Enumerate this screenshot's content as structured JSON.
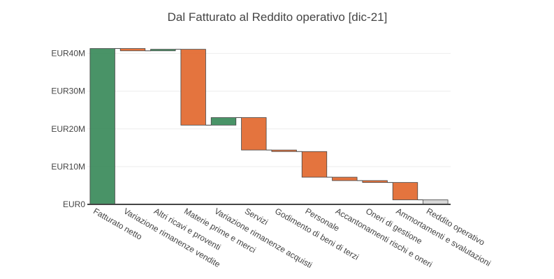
{
  "chart_data": {
    "type": "waterfall",
    "title": "Dal Fatturato al Reddito operativo [dic-21]",
    "currency_prefix": "EUR",
    "y_unit_suffix": "M",
    "ylim": [
      0,
      40
    ],
    "yticks": [
      0,
      10,
      20,
      30,
      40
    ],
    "ytick_labels": [
      "EUR0",
      "EUR10M",
      "EUR20M",
      "EUR30M",
      "EUR40M"
    ],
    "grid": true,
    "colors": {
      "increase": "#3a8a5a",
      "decrease": "#e2682e",
      "total": "#d4d4d4",
      "border": "#444444"
    },
    "categories": [
      "Fatturato netto",
      "Variazione rimanenze vendite",
      "Altri ricavi e proventi",
      "Materie prime e merci",
      "Variazione rimanenze acquisti",
      "Servizi",
      "Godimento di beni di terzi",
      "Personale",
      "Accantonamenti rischi e oneri",
      "Oneri di gestione",
      "Ammortamenti e svalutazioni",
      "Reddito operativo"
    ],
    "measures": [
      "relative",
      "relative",
      "relative",
      "relative",
      "relative",
      "relative",
      "relative",
      "relative",
      "relative",
      "relative",
      "relative",
      "total"
    ],
    "values": [
      41.3,
      -0.6,
      0.4,
      -20.1,
      2.0,
      -8.6,
      -0.4,
      -6.8,
      -0.9,
      -0.5,
      -4.6,
      0
    ]
  }
}
